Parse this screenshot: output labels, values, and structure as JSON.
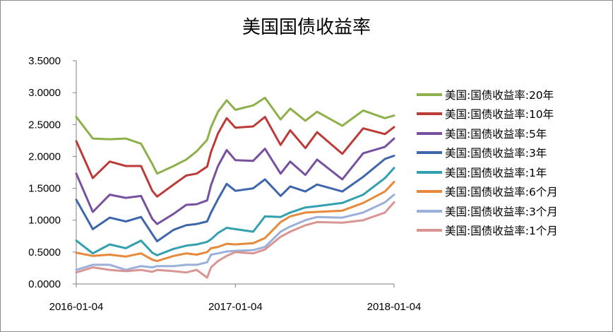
{
  "chart_data": {
    "type": "line",
    "title": "美国国债收益率",
    "xlabel": "",
    "ylabel": "",
    "x_ticks": [
      "2016-01-04",
      "2017-01-04",
      "2018-01-04"
    ],
    "x_range": [
      "2016-01-04",
      "2018-01-04"
    ],
    "y_ticks": [
      "0.0000",
      "0.5000",
      "1.0000",
      "1.5000",
      "2.0000",
      "2.5000",
      "3.0000",
      "3.5000"
    ],
    "ylim": [
      0,
      3.5
    ],
    "grid": false,
    "legend_position": "right",
    "series": [
      {
        "name": "美国:国债收益率:20年",
        "color": "#8db04a",
        "points": [
          [
            "2016-01-04",
            2.62
          ],
          [
            "2016-02-11",
            2.28
          ],
          [
            "2016-03-21",
            2.27
          ],
          [
            "2016-04-27",
            2.28
          ],
          [
            "2016-06-01",
            2.2
          ],
          [
            "2016-06-27",
            1.88
          ],
          [
            "2016-07-08",
            1.73
          ],
          [
            "2016-08-15",
            1.85
          ],
          [
            "2016-09-13",
            1.95
          ],
          [
            "2016-10-07",
            2.08
          ],
          [
            "2016-10-31",
            2.26
          ],
          [
            "2016-11-09",
            2.46
          ],
          [
            "2016-11-25",
            2.7
          ],
          [
            "2016-12-15",
            2.88
          ],
          [
            "2017-01-04",
            2.73
          ],
          [
            "2017-02-14",
            2.8
          ],
          [
            "2017-03-13",
            2.92
          ],
          [
            "2017-04-18",
            2.58
          ],
          [
            "2017-05-10",
            2.75
          ],
          [
            "2017-06-14",
            2.56
          ],
          [
            "2017-07-11",
            2.7
          ],
          [
            "2017-09-07",
            2.48
          ],
          [
            "2017-10-25",
            2.72
          ],
          [
            "2017-12-14",
            2.6
          ],
          [
            "2018-01-04",
            2.64
          ]
        ]
      },
      {
        "name": "美国:国债收益率:10年",
        "color": "#bc3b38",
        "points": [
          [
            "2016-01-04",
            2.24
          ],
          [
            "2016-02-11",
            1.66
          ],
          [
            "2016-03-21",
            1.92
          ],
          [
            "2016-04-27",
            1.85
          ],
          [
            "2016-06-01",
            1.85
          ],
          [
            "2016-06-27",
            1.46
          ],
          [
            "2016-07-08",
            1.37
          ],
          [
            "2016-08-15",
            1.56
          ],
          [
            "2016-09-13",
            1.7
          ],
          [
            "2016-10-07",
            1.73
          ],
          [
            "2016-10-31",
            1.84
          ],
          [
            "2016-11-09",
            2.07
          ],
          [
            "2016-11-25",
            2.36
          ],
          [
            "2016-12-15",
            2.6
          ],
          [
            "2017-01-04",
            2.45
          ],
          [
            "2017-02-14",
            2.47
          ],
          [
            "2017-03-13",
            2.62
          ],
          [
            "2017-04-18",
            2.18
          ],
          [
            "2017-05-10",
            2.41
          ],
          [
            "2017-06-14",
            2.13
          ],
          [
            "2017-07-11",
            2.38
          ],
          [
            "2017-09-07",
            2.04
          ],
          [
            "2017-10-25",
            2.44
          ],
          [
            "2017-12-14",
            2.35
          ],
          [
            "2018-01-04",
            2.46
          ]
        ]
      },
      {
        "name": "美国:国债收益率:5年",
        "color": "#7751a0",
        "points": [
          [
            "2016-01-04",
            1.73
          ],
          [
            "2016-02-11",
            1.13
          ],
          [
            "2016-03-21",
            1.4
          ],
          [
            "2016-04-27",
            1.35
          ],
          [
            "2016-06-01",
            1.38
          ],
          [
            "2016-06-27",
            1.02
          ],
          [
            "2016-07-08",
            0.94
          ],
          [
            "2016-08-15",
            1.1
          ],
          [
            "2016-09-13",
            1.24
          ],
          [
            "2016-10-07",
            1.25
          ],
          [
            "2016-10-31",
            1.31
          ],
          [
            "2016-11-09",
            1.55
          ],
          [
            "2016-11-25",
            1.85
          ],
          [
            "2016-12-15",
            2.1
          ],
          [
            "2017-01-04",
            1.94
          ],
          [
            "2017-02-14",
            1.93
          ],
          [
            "2017-03-13",
            2.12
          ],
          [
            "2017-04-18",
            1.73
          ],
          [
            "2017-05-10",
            1.92
          ],
          [
            "2017-06-14",
            1.71
          ],
          [
            "2017-07-11",
            1.95
          ],
          [
            "2017-09-07",
            1.64
          ],
          [
            "2017-10-25",
            2.05
          ],
          [
            "2017-12-14",
            2.15
          ],
          [
            "2018-01-04",
            2.28
          ]
        ]
      },
      {
        "name": "美国:国债收益率:3年",
        "color": "#3e66ad",
        "points": [
          [
            "2016-01-04",
            1.32
          ],
          [
            "2016-02-11",
            0.86
          ],
          [
            "2016-03-21",
            1.04
          ],
          [
            "2016-04-27",
            0.98
          ],
          [
            "2016-06-01",
            1.05
          ],
          [
            "2016-06-27",
            0.78
          ],
          [
            "2016-07-08",
            0.67
          ],
          [
            "2016-08-15",
            0.85
          ],
          [
            "2016-09-13",
            0.92
          ],
          [
            "2016-10-07",
            0.94
          ],
          [
            "2016-10-31",
            0.98
          ],
          [
            "2016-11-09",
            1.12
          ],
          [
            "2016-11-25",
            1.33
          ],
          [
            "2016-12-15",
            1.57
          ],
          [
            "2017-01-04",
            1.46
          ],
          [
            "2017-02-14",
            1.5
          ],
          [
            "2017-03-13",
            1.64
          ],
          [
            "2017-04-18",
            1.38
          ],
          [
            "2017-05-10",
            1.53
          ],
          [
            "2017-06-14",
            1.45
          ],
          [
            "2017-07-11",
            1.56
          ],
          [
            "2017-09-07",
            1.45
          ],
          [
            "2017-10-25",
            1.68
          ],
          [
            "2017-12-14",
            1.96
          ],
          [
            "2018-01-04",
            2.01
          ]
        ]
      },
      {
        "name": "美国:国债收益率:1年",
        "color": "#33a0b0",
        "points": [
          [
            "2016-01-04",
            0.68
          ],
          [
            "2016-02-11",
            0.48
          ],
          [
            "2016-03-21",
            0.62
          ],
          [
            "2016-04-27",
            0.56
          ],
          [
            "2016-06-01",
            0.68
          ],
          [
            "2016-06-27",
            0.49
          ],
          [
            "2016-07-08",
            0.45
          ],
          [
            "2016-08-15",
            0.55
          ],
          [
            "2016-09-13",
            0.6
          ],
          [
            "2016-10-07",
            0.62
          ],
          [
            "2016-10-31",
            0.66
          ],
          [
            "2016-11-09",
            0.7
          ],
          [
            "2016-11-25",
            0.8
          ],
          [
            "2016-12-15",
            0.88
          ],
          [
            "2017-01-04",
            0.86
          ],
          [
            "2017-02-14",
            0.82
          ],
          [
            "2017-03-13",
            1.06
          ],
          [
            "2017-04-18",
            1.05
          ],
          [
            "2017-05-10",
            1.12
          ],
          [
            "2017-06-14",
            1.2
          ],
          [
            "2017-07-11",
            1.22
          ],
          [
            "2017-09-07",
            1.27
          ],
          [
            "2017-10-25",
            1.4
          ],
          [
            "2017-12-14",
            1.66
          ],
          [
            "2018-01-04",
            1.82
          ]
        ]
      },
      {
        "name": "美国:国债收益率:6个月",
        "color": "#e7893a",
        "points": [
          [
            "2016-01-04",
            0.49
          ],
          [
            "2016-02-11",
            0.44
          ],
          [
            "2016-03-21",
            0.46
          ],
          [
            "2016-04-27",
            0.43
          ],
          [
            "2016-06-01",
            0.48
          ],
          [
            "2016-06-27",
            0.38
          ],
          [
            "2016-07-08",
            0.36
          ],
          [
            "2016-08-15",
            0.44
          ],
          [
            "2016-09-13",
            0.48
          ],
          [
            "2016-10-07",
            0.46
          ],
          [
            "2016-10-31",
            0.5
          ],
          [
            "2016-11-09",
            0.56
          ],
          [
            "2016-11-25",
            0.58
          ],
          [
            "2016-12-15",
            0.63
          ],
          [
            "2017-01-04",
            0.62
          ],
          [
            "2017-02-14",
            0.64
          ],
          [
            "2017-03-13",
            0.72
          ],
          [
            "2017-04-18",
            0.97
          ],
          [
            "2017-05-10",
            1.06
          ],
          [
            "2017-06-14",
            1.12
          ],
          [
            "2017-07-11",
            1.13
          ],
          [
            "2017-09-07",
            1.15
          ],
          [
            "2017-10-25",
            1.27
          ],
          [
            "2017-12-14",
            1.45
          ],
          [
            "2018-01-04",
            1.6
          ]
        ]
      },
      {
        "name": "美国:国债收益率:3个月",
        "color": "#9aafda",
        "points": [
          [
            "2016-01-04",
            0.22
          ],
          [
            "2016-02-11",
            0.3
          ],
          [
            "2016-03-21",
            0.3
          ],
          [
            "2016-04-27",
            0.22
          ],
          [
            "2016-06-01",
            0.28
          ],
          [
            "2016-06-27",
            0.26
          ],
          [
            "2016-07-08",
            0.28
          ],
          [
            "2016-08-15",
            0.28
          ],
          [
            "2016-09-13",
            0.3
          ],
          [
            "2016-10-07",
            0.3
          ],
          [
            "2016-10-31",
            0.34
          ],
          [
            "2016-11-09",
            0.46
          ],
          [
            "2016-11-25",
            0.48
          ],
          [
            "2016-12-15",
            0.51
          ],
          [
            "2017-01-04",
            0.52
          ],
          [
            "2017-02-14",
            0.53
          ],
          [
            "2017-03-13",
            0.58
          ],
          [
            "2017-04-18",
            0.82
          ],
          [
            "2017-05-10",
            0.9
          ],
          [
            "2017-06-14",
            1.0
          ],
          [
            "2017-07-11",
            1.05
          ],
          [
            "2017-09-07",
            1.04
          ],
          [
            "2017-10-25",
            1.12
          ],
          [
            "2017-12-14",
            1.28
          ],
          [
            "2018-01-04",
            1.4
          ]
        ]
      },
      {
        "name": "美国:国债收益率:1个月",
        "color": "#d99593",
        "points": [
          [
            "2016-01-04",
            0.18
          ],
          [
            "2016-02-11",
            0.26
          ],
          [
            "2016-03-21",
            0.22
          ],
          [
            "2016-04-27",
            0.2
          ],
          [
            "2016-06-01",
            0.22
          ],
          [
            "2016-06-27",
            0.19
          ],
          [
            "2016-07-08",
            0.22
          ],
          [
            "2016-08-15",
            0.2
          ],
          [
            "2016-09-13",
            0.18
          ],
          [
            "2016-10-07",
            0.22
          ],
          [
            "2016-10-31",
            0.1
          ],
          [
            "2016-11-09",
            0.26
          ],
          [
            "2016-11-25",
            0.36
          ],
          [
            "2016-12-15",
            0.44
          ],
          [
            "2017-01-04",
            0.5
          ],
          [
            "2017-02-14",
            0.48
          ],
          [
            "2017-03-13",
            0.54
          ],
          [
            "2017-04-18",
            0.74
          ],
          [
            "2017-05-10",
            0.82
          ],
          [
            "2017-06-14",
            0.92
          ],
          [
            "2017-07-11",
            0.97
          ],
          [
            "2017-09-07",
            0.96
          ],
          [
            "2017-10-25",
            1.0
          ],
          [
            "2017-12-14",
            1.12
          ],
          [
            "2018-01-04",
            1.28
          ]
        ]
      }
    ]
  }
}
